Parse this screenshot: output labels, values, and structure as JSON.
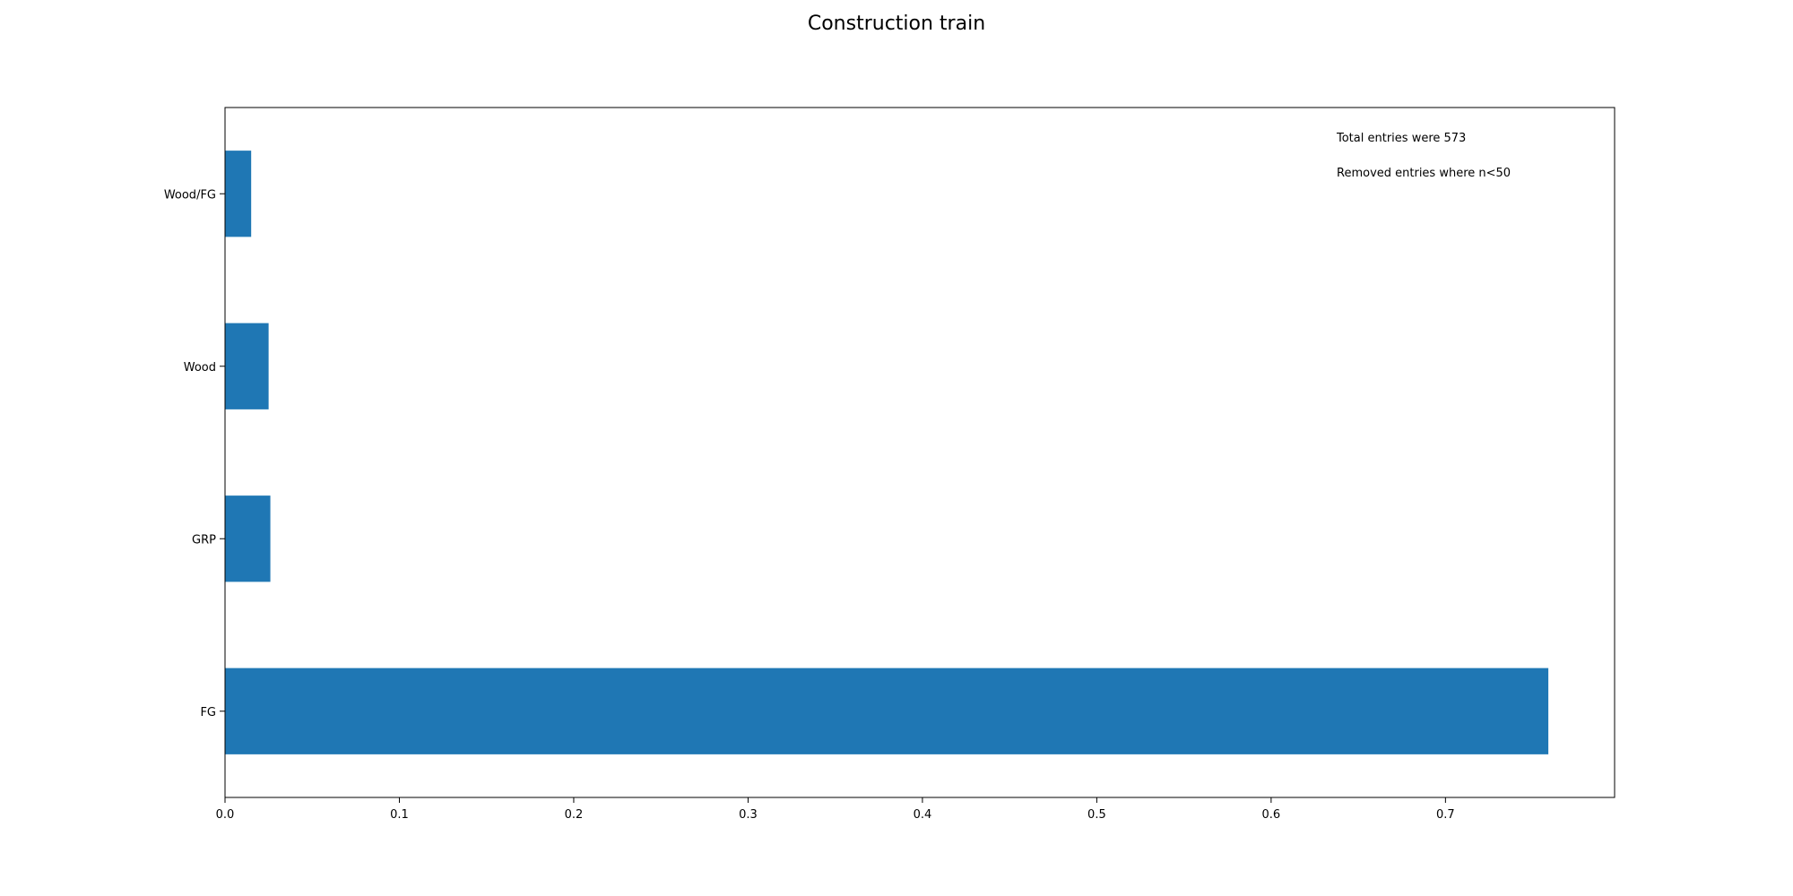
{
  "chart_data": {
    "type": "bar",
    "orientation": "horizontal",
    "title": "Construction train",
    "xlabel": "",
    "ylabel": "",
    "categories": [
      "FG",
      "GRP",
      "Wood",
      "Wood/FG"
    ],
    "values": [
      0.759,
      0.026,
      0.025,
      0.015
    ],
    "xlim": [
      0,
      0.797
    ],
    "xticks": [
      "0.0",
      "0.1",
      "0.2",
      "0.3",
      "0.4",
      "0.5",
      "0.6",
      "0.7"
    ],
    "grid": false,
    "bar_color": "#1f77b4",
    "annotations": [
      "Total entries were 573",
      "Removed entries where n<50"
    ]
  }
}
